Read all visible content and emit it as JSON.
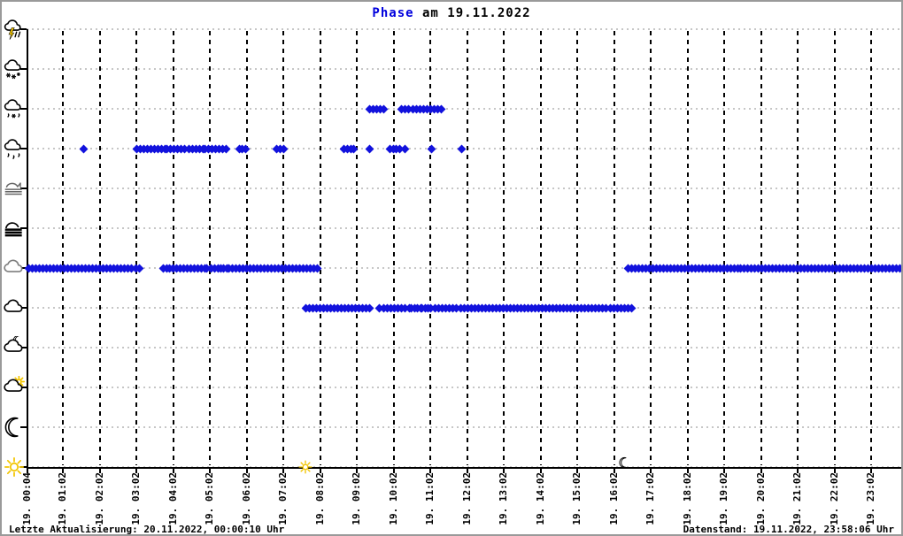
{
  "title": {
    "accent": "Phase",
    "rest": " am 19.11.2022"
  },
  "footer": {
    "left": "Letzte Aktualisierung: 20.11.2022, 00:00:10 Uhr",
    "right": "Datenstand: 19.11.2022, 23:58:06 Uhr"
  },
  "colors": {
    "title_accent": "#0000dd",
    "marker_blue": "#1212dd",
    "h_grid": "#c6c6c6",
    "v_grid": "#000000",
    "axis": "#000000",
    "sun_yellow": "#f2c500",
    "background": "#ffffff"
  },
  "y_axis": {
    "levels": [
      {
        "id": "thunderstorm",
        "icon": "thunderstorm-icon"
      },
      {
        "id": "snow",
        "icon": "snow-icon"
      },
      {
        "id": "sleet",
        "icon": "sleet-icon"
      },
      {
        "id": "rain",
        "icon": "rain-icon"
      },
      {
        "id": "mist",
        "icon": "mist-icon"
      },
      {
        "id": "fog",
        "icon": "fog-icon"
      },
      {
        "id": "overcast",
        "icon": "overcast-icon"
      },
      {
        "id": "cloudy",
        "icon": "cloudy-icon"
      },
      {
        "id": "partly-cloudy-night",
        "icon": "partly-cloudy-night-icon"
      },
      {
        "id": "partly-cloudy-day",
        "icon": "partly-cloudy-day-icon"
      },
      {
        "id": "clear-night",
        "icon": "clear-night-icon"
      },
      {
        "id": "clear-day",
        "icon": "clear-day-icon"
      }
    ]
  },
  "x_axis": {
    "tick_labels": [
      "19. 00:04",
      "19. 01:02",
      "19. 02:02",
      "19. 03:02",
      "19. 04:02",
      "19. 05:02",
      "19. 06:02",
      "19. 07:02",
      "19. 08:02",
      "19. 09:02",
      "19. 10:02",
      "19. 11:02",
      "19. 12:02",
      "19. 13:02",
      "19. 14:02",
      "19. 15:02",
      "19. 16:02",
      "19. 17:02",
      "19. 18:02",
      "19. 19:02",
      "19. 20:02",
      "19. 21:02",
      "19. 22:02",
      "19. 23:02"
    ]
  },
  "chart_data": {
    "type": "scatter",
    "title": "Phase am 19.11.2022",
    "marker": "diamond",
    "marker_color": "#1212dd",
    "x_axis": {
      "unit": "time-of-day",
      "start": "00:04",
      "end": "23:58",
      "tick_interval_minutes": 60
    },
    "y_levels": [
      "thunderstorm",
      "snow",
      "sleet",
      "rain",
      "mist",
      "fog",
      "overcast",
      "cloudy",
      "partly-cloudy-night",
      "partly-cloudy-day",
      "clear-night",
      "clear-day"
    ],
    "grid": {
      "horizontal": "dotted-gray",
      "vertical": "dashed-black"
    },
    "sun_events": {
      "sunrise": "07:38",
      "sunset": "16:18"
    },
    "segments": [
      {
        "level": "sleet",
        "start": "09:23",
        "end": "09:46"
      },
      {
        "level": "sleet",
        "start": "10:15",
        "end": "11:20"
      },
      {
        "level": "rain",
        "start": "01:36",
        "end": "01:36"
      },
      {
        "level": "rain",
        "start": "03:03",
        "end": "03:48"
      },
      {
        "level": "rain",
        "start": "03:51",
        "end": "04:15"
      },
      {
        "level": "rain",
        "start": "04:21",
        "end": "04:51"
      },
      {
        "level": "rain",
        "start": "04:54",
        "end": "05:28"
      },
      {
        "level": "rain",
        "start": "05:50",
        "end": "06:00"
      },
      {
        "level": "rain",
        "start": "06:50",
        "end": "07:02"
      },
      {
        "level": "rain",
        "start": "08:41",
        "end": "08:57"
      },
      {
        "level": "rain",
        "start": "09:23",
        "end": "09:23"
      },
      {
        "level": "rain",
        "start": "09:56",
        "end": "10:11"
      },
      {
        "level": "rain",
        "start": "10:20",
        "end": "10:20"
      },
      {
        "level": "rain",
        "start": "11:04",
        "end": "11:04"
      },
      {
        "level": "rain",
        "start": "11:53",
        "end": "11:53"
      },
      {
        "level": "overcast",
        "start": "00:04",
        "end": "03:06"
      },
      {
        "level": "overcast",
        "start": "03:46",
        "end": "04:01"
      },
      {
        "level": "overcast",
        "start": "04:08",
        "end": "04:54"
      },
      {
        "level": "overcast",
        "start": "04:57",
        "end": "05:16"
      },
      {
        "level": "overcast",
        "start": "05:19",
        "end": "05:30"
      },
      {
        "level": "overcast",
        "start": "05:33",
        "end": "07:57"
      },
      {
        "level": "overcast",
        "start": "16:25",
        "end": "23:53"
      },
      {
        "level": "cloudy",
        "start": "07:38",
        "end": "09:23"
      },
      {
        "level": "cloudy",
        "start": "09:39",
        "end": "10:27"
      },
      {
        "level": "cloudy",
        "start": "10:31",
        "end": "10:46"
      },
      {
        "level": "cloudy",
        "start": "10:48",
        "end": "11:03"
      },
      {
        "level": "cloudy",
        "start": "11:10",
        "end": "16:30"
      }
    ]
  }
}
